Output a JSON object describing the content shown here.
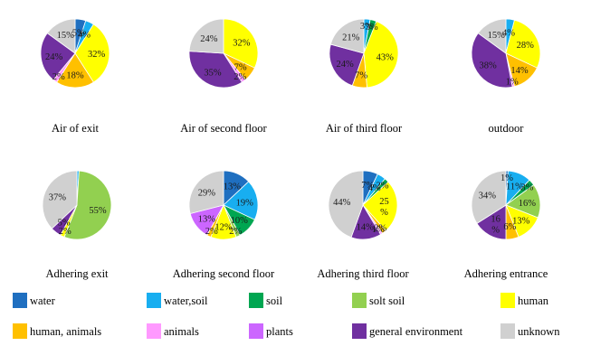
{
  "categories": [
    {
      "key": "water",
      "label": "water",
      "color": "#1f6fc0"
    },
    {
      "key": "water_soil",
      "label": "water,soil",
      "color": "#18aef0"
    },
    {
      "key": "soil",
      "label": "soil",
      "color": "#00a651"
    },
    {
      "key": "solt_soil",
      "label": "solt soil",
      "color": "#92d050"
    },
    {
      "key": "human",
      "label": "human",
      "color": "#ffff00"
    },
    {
      "key": "human_animals",
      "label": "human, animals",
      "color": "#ffc000"
    },
    {
      "key": "animals",
      "label": "animals",
      "color": "#ff99ff"
    },
    {
      "key": "plants",
      "label": "plants",
      "color": "#cc66ff"
    },
    {
      "key": "general_env",
      "label": "general environment",
      "color": "#7030a0"
    },
    {
      "key": "unknown",
      "label": "unknown",
      "color": "#d0d0d0"
    }
  ],
  "chart_data": [
    {
      "type": "pie",
      "title": "Air of exit",
      "slices": [
        {
          "category": "water",
          "value": 5,
          "label": "5%"
        },
        {
          "category": "water_soil",
          "value": 4,
          "label": "4%"
        },
        {
          "category": "human",
          "value": 32,
          "label": "32%"
        },
        {
          "category": "human_animals",
          "value": 18,
          "label": "18%"
        },
        {
          "category": "animals",
          "value": 2,
          "label": "2%"
        },
        {
          "category": "general_env",
          "value": 24,
          "label": "24%"
        },
        {
          "category": "unknown",
          "value": 15,
          "label": "15%"
        }
      ]
    },
    {
      "type": "pie",
      "title": "Air of second floor",
      "slices": [
        {
          "category": "human",
          "value": 32,
          "label": "32%"
        },
        {
          "category": "human_animals",
          "value": 7,
          "label": "7%"
        },
        {
          "category": "animals",
          "value": 2,
          "label": "2%"
        },
        {
          "category": "general_env",
          "value": 35,
          "label": "35%"
        },
        {
          "category": "unknown",
          "value": 24,
          "label": "24%"
        }
      ]
    },
    {
      "type": "pie",
      "title": "Air of third floor",
      "slices": [
        {
          "category": "water_soil",
          "value": 3,
          "label": "3%"
        },
        {
          "category": "soil",
          "value": 3,
          "label": "3%"
        },
        {
          "category": "human",
          "value": 43,
          "label": "43%"
        },
        {
          "category": "human_animals",
          "value": 7,
          "label": "7%"
        },
        {
          "category": "general_env",
          "value": 24,
          "label": "24%"
        },
        {
          "category": "unknown",
          "value": 21,
          "label": "21%"
        }
      ]
    },
    {
      "type": "pie",
      "title": "outdoor",
      "slices": [
        {
          "category": "water_soil",
          "value": 4,
          "label": "4%"
        },
        {
          "category": "human",
          "value": 28,
          "label": "28%"
        },
        {
          "category": "human_animals",
          "value": 14,
          "label": "14%"
        },
        {
          "category": "animals",
          "value": 1,
          "label": "1%"
        },
        {
          "category": "general_env",
          "value": 38,
          "label": "38%"
        },
        {
          "category": "unknown",
          "value": 15,
          "label": "15%"
        }
      ]
    },
    {
      "type": "pie",
      "title": "Adhering exit",
      "slices": [
        {
          "category": "water_soil",
          "value": 1,
          "label": ""
        },
        {
          "category": "solt_soil",
          "value": 55,
          "label": "55%"
        },
        {
          "category": "human",
          "value": 2,
          "label": "2%"
        },
        {
          "category": "general_env",
          "value": 5,
          "label": "5%"
        },
        {
          "category": "unknown",
          "value": 37,
          "label": "37%"
        }
      ]
    },
    {
      "type": "pie",
      "title": "Adhering second floor",
      "slices": [
        {
          "category": "water",
          "value": 13,
          "label": "13%"
        },
        {
          "category": "water_soil",
          "value": 19,
          "label": "19%"
        },
        {
          "category": "soil",
          "value": 10,
          "label": "10%"
        },
        {
          "category": "solt_soil",
          "value": 2,
          "label": "2%"
        },
        {
          "category": "human",
          "value": 12,
          "label": "12%"
        },
        {
          "category": "human_animals",
          "value": 2,
          "label": "2%"
        },
        {
          "category": "plants",
          "value": 13,
          "label": "13%"
        },
        {
          "category": "unknown",
          "value": 29,
          "label": "29%"
        }
      ]
    },
    {
      "type": "pie",
      "title": "Adhering third floor",
      "slices": [
        {
          "category": "water",
          "value": 7,
          "label": "7%"
        },
        {
          "category": "water_soil",
          "value": 4,
          "label": "4%"
        },
        {
          "category": "soil",
          "value": 2,
          "label": "2%"
        },
        {
          "category": "human",
          "value": 25,
          "label": "25 %"
        },
        {
          "category": "human_animals",
          "value": 2,
          "label": "2%"
        },
        {
          "category": "animals",
          "value": 1,
          "label": "1%"
        },
        {
          "category": "general_env",
          "value": 14,
          "label": "14%"
        },
        {
          "category": "unknown",
          "value": 44,
          "label": "44%"
        }
      ]
    },
    {
      "type": "pie",
      "title": "Adhering entrance",
      "slices": [
        {
          "category": "water",
          "value": 1,
          "label": "1%"
        },
        {
          "category": "water_soil",
          "value": 11,
          "label": "11%"
        },
        {
          "category": "soil",
          "value": 3,
          "label": "3%"
        },
        {
          "category": "solt_soil",
          "value": 16,
          "label": "16%"
        },
        {
          "category": "human",
          "value": 13,
          "label": "13%"
        },
        {
          "category": "human_animals",
          "value": 6,
          "label": "6%"
        },
        {
          "category": "general_env",
          "value": 16,
          "label": "16 %"
        },
        {
          "category": "unknown",
          "value": 34,
          "label": "34%"
        }
      ]
    }
  ]
}
